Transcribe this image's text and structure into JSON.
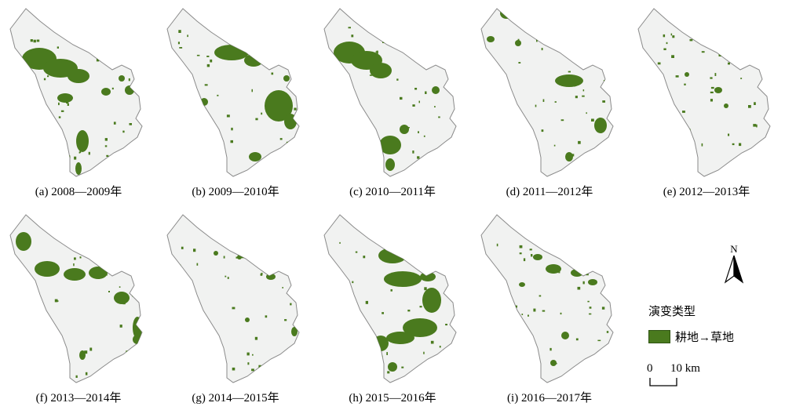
{
  "panels": [
    {
      "caption": "(a) 2008—2009年"
    },
    {
      "caption": "(b) 2009—2010年"
    },
    {
      "caption": "(c) 2010—2011年"
    },
    {
      "caption": "(d) 2011—2012年"
    },
    {
      "caption": "(e) 2012—2013年"
    },
    {
      "caption": "(f) 2013—2014年"
    },
    {
      "caption": "(g) 2014—2015年"
    },
    {
      "caption": "(h) 2015—2016年"
    },
    {
      "caption": "(i) 2016—2017年"
    }
  ],
  "north_arrow": {
    "label": "N"
  },
  "legend": {
    "title": "演变类型",
    "items": [
      {
        "label": "耕地→草地",
        "color": "#4a7a1e"
      }
    ]
  },
  "scale_bar": {
    "start": "0",
    "end": "10 km"
  },
  "colors": {
    "region_fill": "#f1f2f1",
    "region_stroke": "#8a8a8a",
    "change_fill": "#4a7a1e"
  }
}
